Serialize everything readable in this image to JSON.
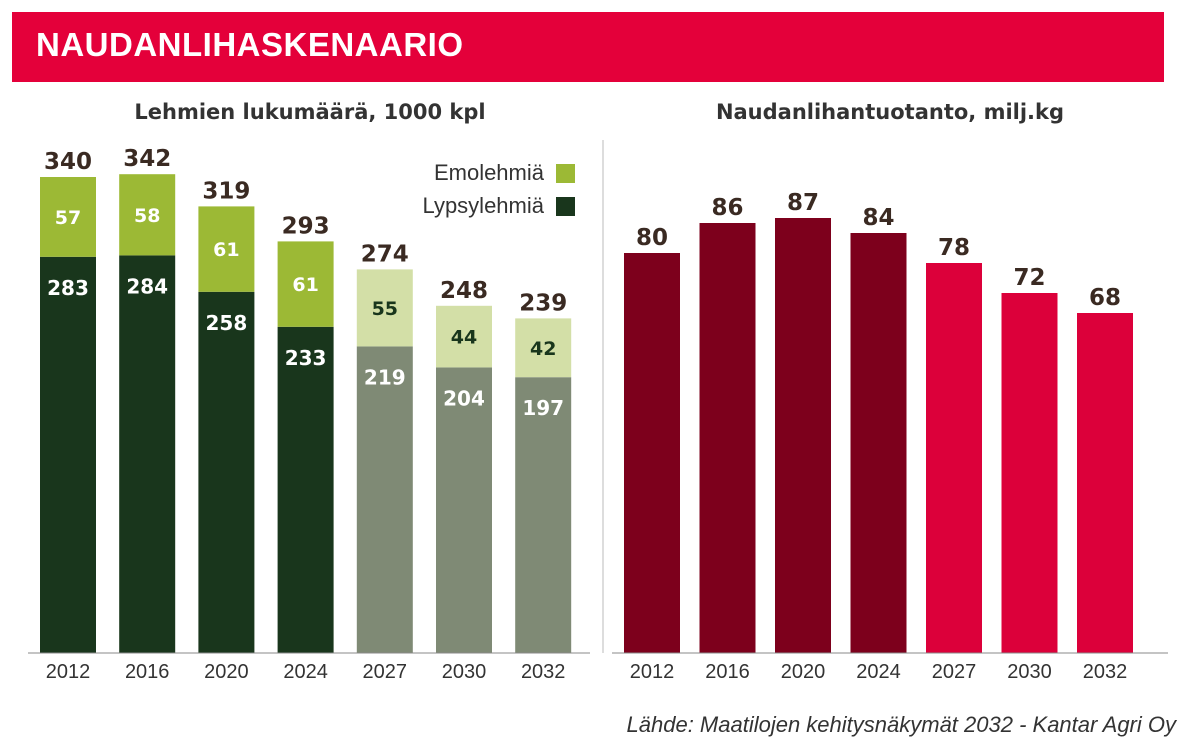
{
  "header": {
    "title": "NAUDANLIHASKENAARIO"
  },
  "source": "Lähde: Maatilojen kehitysnäkymät 2032 - Kantar Agri Oy",
  "colors": {
    "banner": "#e4003a",
    "emolehmia_actual": "#9cb935",
    "emolehmia_forecast": "#d3dfa7",
    "lypsylehmia_actual": "#19361c",
    "lypsylehmia_forecast": "#7f8a75",
    "meat_actual": "#7d001c",
    "meat_forecast": "#dc003a"
  },
  "chart_data": [
    {
      "type": "bar",
      "stacked": true,
      "title": "Lehmien lukumäärä, 1000 kpl",
      "categories": [
        "2012",
        "2016",
        "2020",
        "2024",
        "2027",
        "2030",
        "2032"
      ],
      "forecast_from": "2027",
      "series": [
        {
          "name": "Lypsylehmiä",
          "values": [
            283,
            284,
            258,
            233,
            219,
            204,
            197
          ]
        },
        {
          "name": "Emolehmiä",
          "values": [
            57,
            58,
            61,
            61,
            55,
            44,
            42
          ]
        }
      ],
      "totals": [
        340,
        342,
        319,
        293,
        274,
        248,
        239
      ],
      "legend": [
        "Emolehmiä",
        "Lypsylehmiä"
      ],
      "ylim": [
        0,
        360
      ]
    },
    {
      "type": "bar",
      "title": "Naudanlihantuotanto, milj.kg",
      "categories": [
        "2012",
        "2016",
        "2020",
        "2024",
        "2027",
        "2030",
        "2032"
      ],
      "forecast_from": "2027",
      "values": [
        80,
        86,
        87,
        84,
        78,
        72,
        68
      ],
      "ylim": [
        0,
        93
      ]
    }
  ]
}
